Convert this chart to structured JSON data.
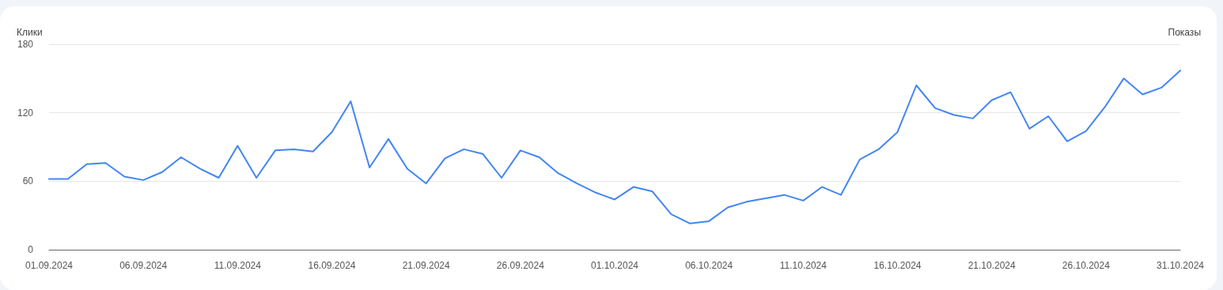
{
  "chart_data": {
    "type": "line",
    "ylabel": "Клики",
    "y2label": "Показы",
    "x": [
      "2024-09-01",
      "2024-09-02",
      "2024-09-03",
      "2024-09-04",
      "2024-09-05",
      "2024-09-06",
      "2024-09-07",
      "2024-09-08",
      "2024-09-09",
      "2024-09-10",
      "2024-09-11",
      "2024-09-12",
      "2024-09-13",
      "2024-09-14",
      "2024-09-15",
      "2024-09-16",
      "2024-09-17",
      "2024-09-18",
      "2024-09-19",
      "2024-09-20",
      "2024-09-21",
      "2024-09-22",
      "2024-09-23",
      "2024-09-24",
      "2024-09-25",
      "2024-09-26",
      "2024-09-27",
      "2024-09-28",
      "2024-09-29",
      "2024-09-30",
      "2024-10-01",
      "2024-10-02",
      "2024-10-03",
      "2024-10-04",
      "2024-10-05",
      "2024-10-06",
      "2024-10-07",
      "2024-10-08",
      "2024-10-09",
      "2024-10-10",
      "2024-10-11",
      "2024-10-12",
      "2024-10-13",
      "2024-10-14",
      "2024-10-15",
      "2024-10-16",
      "2024-10-17",
      "2024-10-18",
      "2024-10-19",
      "2024-10-20",
      "2024-10-21",
      "2024-10-22",
      "2024-10-23",
      "2024-10-24",
      "2024-10-25",
      "2024-10-26",
      "2024-10-27",
      "2024-10-28",
      "2024-10-29",
      "2024-10-30",
      "2024-10-31"
    ],
    "series": [
      {
        "color": "#4285f4",
        "values": [
          62,
          62,
          75,
          76,
          64,
          61,
          68,
          81,
          71,
          63,
          91,
          63,
          87,
          88,
          86,
          103,
          130,
          72,
          97,
          71,
          58,
          80,
          88,
          84,
          63,
          87,
          81,
          67,
          58,
          50,
          44,
          55,
          51,
          31,
          23,
          25,
          37,
          42,
          45,
          48,
          43,
          55,
          48,
          79,
          88,
          103,
          144,
          124,
          118,
          115,
          131,
          138,
          106,
          117,
          95,
          104,
          125,
          150,
          136,
          142,
          157
        ]
      }
    ],
    "xlim": [
      "2024-09-01",
      "2024-10-31"
    ],
    "xticks": [
      {
        "value": "2024-09-01",
        "label": "01.09.2024"
      },
      {
        "value": "2024-09-06",
        "label": "06.09.2024"
      },
      {
        "value": "2024-09-11",
        "label": "11.09.2024"
      },
      {
        "value": "2024-09-16",
        "label": "16.09.2024"
      },
      {
        "value": "2024-09-21",
        "label": "21.09.2024"
      },
      {
        "value": "2024-09-26",
        "label": "26.09.2024"
      },
      {
        "value": "2024-10-01",
        "label": "01.10.2024"
      },
      {
        "value": "2024-10-06",
        "label": "06.10.2024"
      },
      {
        "value": "2024-10-11",
        "label": "11.10.2024"
      },
      {
        "value": "2024-10-16",
        "label": "16.10.2024"
      },
      {
        "value": "2024-10-21",
        "label": "21.10.2024"
      },
      {
        "value": "2024-10-26",
        "label": "26.10.2024"
      },
      {
        "value": "2024-10-31",
        "label": "31.10.2024"
      }
    ],
    "ylim": [
      0,
      180
    ],
    "yticks": [
      0,
      60,
      120,
      180
    ],
    "grid": "y",
    "marker": "none",
    "line_style": "solid"
  }
}
